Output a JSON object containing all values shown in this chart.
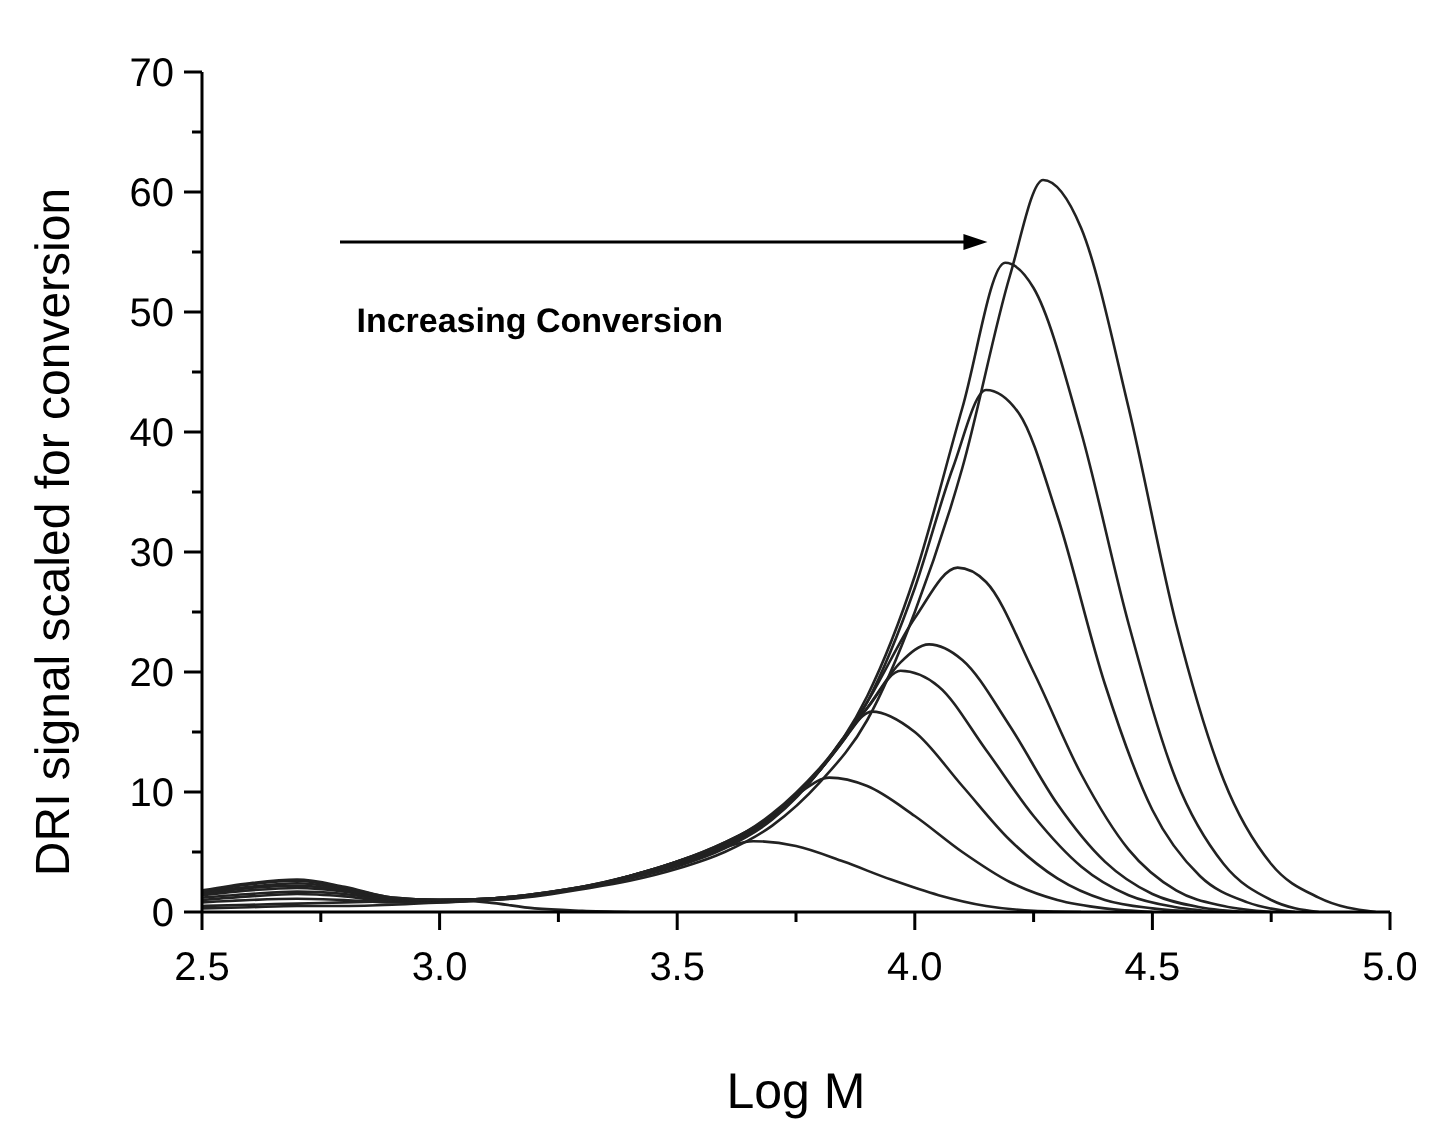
{
  "chart_data": {
    "type": "line",
    "xlabel": "Log M",
    "ylabel": "DRI signal scaled for conversion",
    "annotations": [
      "Increasing Conversion"
    ],
    "xlim": [
      2.5,
      5.0
    ],
    "ylim": [
      0,
      70
    ],
    "xticks": [
      2.5,
      {
        "value": 2.75,
        "label": null
      },
      {
        "value": 3.0,
        "label": "3.0"
      },
      {
        "value": 3.25,
        "label": null
      },
      3.5,
      {
        "value": 3.75,
        "label": null
      },
      {
        "value": 4.0,
        "label": "4.0"
      },
      {
        "value": 4.25,
        "label": null
      },
      4.5,
      {
        "value": 4.75,
        "label": null
      },
      {
        "value": 5.0,
        "label": "5.0"
      }
    ],
    "yticks": [
      0,
      {
        "value": 5,
        "label": null
      },
      10,
      {
        "value": 15,
        "label": null
      },
      20,
      {
        "value": 25,
        "label": null
      },
      30,
      {
        "value": 35,
        "label": null
      },
      40,
      {
        "value": 45,
        "label": null
      },
      50,
      {
        "value": 55,
        "label": null
      },
      60,
      {
        "value": 65,
        "label": null
      },
      70
    ],
    "marker": "none",
    "line_style": "solid",
    "series": [
      {
        "color": "#222222",
        "x": [
          2.5,
          2.6,
          2.7,
          2.8,
          2.9,
          3.0,
          3.1,
          3.2,
          3.3,
          3.4
        ],
        "values": [
          0.5,
          0.6,
          0.7,
          0.8,
          0.9,
          1.0,
          0.8,
          0.3,
          0.1,
          0
        ]
      },
      {
        "color": "#222222",
        "x": [
          2.5,
          2.6,
          2.7,
          2.8,
          2.9,
          3.0,
          3.1,
          3.2,
          3.3,
          3.4,
          3.5,
          3.6,
          3.66,
          3.75,
          3.85,
          3.95,
          4.05,
          4.15,
          4.25,
          4.35
        ],
        "values": [
          0.3,
          0.4,
          0.5,
          0.5,
          0.6,
          0.8,
          1.0,
          1.4,
          2.0,
          2.9,
          4.0,
          5.4,
          5.9,
          5.5,
          4.2,
          2.7,
          1.4,
          0.5,
          0.1,
          0
        ]
      },
      {
        "color": "#222222",
        "x": [
          2.5,
          2.6,
          2.7,
          2.8,
          2.9,
          3.0,
          3.1,
          3.2,
          3.3,
          3.4,
          3.5,
          3.6,
          3.7,
          3.76,
          3.82,
          3.9,
          4.0,
          4.1,
          4.2,
          4.3,
          4.4,
          4.5
        ],
        "values": [
          0.8,
          1.0,
          1.1,
          1.0,
          0.8,
          0.8,
          1.0,
          1.4,
          2.0,
          3.0,
          4.2,
          5.8,
          8.0,
          10.0,
          11.2,
          10.5,
          8.0,
          5.0,
          2.5,
          1.0,
          0.3,
          0
        ]
      },
      {
        "color": "#222222",
        "x": [
          2.5,
          2.6,
          2.7,
          2.8,
          2.9,
          3.0,
          3.1,
          3.2,
          3.3,
          3.4,
          3.5,
          3.6,
          3.7,
          3.8,
          3.86,
          3.91,
          4.0,
          4.1,
          4.2,
          4.3,
          4.4,
          4.5,
          4.6
        ],
        "values": [
          1.0,
          1.3,
          1.5,
          1.3,
          0.9,
          0.9,
          1.0,
          1.4,
          2.0,
          3.0,
          4.2,
          5.8,
          8.0,
          11.8,
          15.0,
          16.7,
          15.0,
          10.5,
          6.0,
          2.8,
          1.0,
          0.3,
          0
        ]
      },
      {
        "color": "#222222",
        "x": [
          2.5,
          2.6,
          2.7,
          2.8,
          2.9,
          3.0,
          3.1,
          3.2,
          3.3,
          3.4,
          3.5,
          3.6,
          3.7,
          3.8,
          3.9,
          3.97,
          4.05,
          4.15,
          4.25,
          4.35,
          4.45,
          4.55,
          4.65
        ],
        "values": [
          1.2,
          1.5,
          1.7,
          1.5,
          1.0,
          1.0,
          1.1,
          1.5,
          2.1,
          3.0,
          4.2,
          5.7,
          8.2,
          12.0,
          17.0,
          20.1,
          18.8,
          13.5,
          8.0,
          3.8,
          1.4,
          0.4,
          0
        ]
      },
      {
        "color": "#222222",
        "x": [
          2.5,
          2.6,
          2.7,
          2.8,
          2.9,
          3.0,
          3.1,
          3.2,
          3.3,
          3.4,
          3.5,
          3.6,
          3.7,
          3.8,
          3.9,
          3.97,
          4.03,
          4.1,
          4.2,
          4.3,
          4.4,
          4.5,
          4.6,
          4.7
        ],
        "values": [
          1.4,
          1.8,
          2.0,
          1.7,
          1.0,
          1.0,
          1.1,
          1.5,
          2.1,
          3.0,
          4.1,
          5.6,
          8.0,
          11.8,
          17.0,
          20.8,
          22.3,
          21.0,
          15.5,
          9.0,
          4.2,
          1.5,
          0.4,
          0
        ]
      },
      {
        "color": "#222222",
        "x": [
          2.5,
          2.6,
          2.7,
          2.8,
          2.9,
          3.0,
          3.1,
          3.2,
          3.3,
          3.4,
          3.5,
          3.6,
          3.7,
          3.8,
          3.9,
          4.0,
          4.09,
          4.15,
          4.25,
          4.35,
          4.45,
          4.55,
          4.65,
          4.75
        ],
        "values": [
          1.5,
          2.0,
          2.2,
          1.8,
          1.1,
          1.0,
          1.1,
          1.5,
          2.1,
          2.9,
          4.0,
          5.5,
          7.9,
          11.8,
          17.5,
          24.5,
          28.7,
          27.5,
          20.0,
          11.5,
          5.2,
          1.8,
          0.5,
          0
        ]
      },
      {
        "color": "#222222",
        "x": [
          2.5,
          2.6,
          2.7,
          2.8,
          2.9,
          3.0,
          3.1,
          3.2,
          3.3,
          3.4,
          3.5,
          3.6,
          3.7,
          3.8,
          3.9,
          4.0,
          4.08,
          4.15,
          4.22,
          4.3,
          4.4,
          4.5,
          4.6,
          4.7,
          4.8
        ],
        "values": [
          1.6,
          2.1,
          2.4,
          1.9,
          1.1,
          1.0,
          1.1,
          1.4,
          2.0,
          2.8,
          3.9,
          5.4,
          7.8,
          11.8,
          17.5,
          27.0,
          37.0,
          43.5,
          41.5,
          33.0,
          19.0,
          8.5,
          3.0,
          0.8,
          0
        ]
      },
      {
        "color": "#222222",
        "x": [
          2.5,
          2.6,
          2.7,
          2.8,
          2.9,
          3.0,
          3.1,
          3.2,
          3.3,
          3.4,
          3.5,
          3.6,
          3.7,
          3.8,
          3.9,
          4.0,
          4.1,
          4.19,
          4.25,
          4.35,
          4.45,
          4.55,
          4.65,
          4.75,
          4.85
        ],
        "values": [
          1.7,
          2.3,
          2.6,
          2.0,
          1.2,
          1.0,
          1.1,
          1.4,
          2.0,
          2.8,
          3.8,
          5.3,
          7.7,
          11.8,
          18.0,
          28.0,
          42.0,
          54.1,
          52.0,
          40.0,
          24.0,
          11.0,
          4.0,
          1.0,
          0
        ]
      },
      {
        "color": "#222222",
        "x": [
          2.5,
          2.6,
          2.7,
          2.8,
          2.9,
          3.0,
          3.1,
          3.2,
          3.3,
          3.4,
          3.5,
          3.6,
          3.7,
          3.8,
          3.9,
          4.0,
          4.1,
          4.2,
          4.27,
          4.35,
          4.45,
          4.55,
          4.65,
          4.75,
          4.85,
          4.97
        ],
        "values": [
          1.8,
          2.4,
          2.7,
          2.1,
          1.2,
          1.0,
          1.0,
          1.3,
          1.9,
          2.6,
          3.6,
          5.0,
          7.2,
          10.8,
          16.0,
          25.0,
          37.0,
          53.0,
          61.0,
          57.0,
          42.0,
          24.0,
          11.0,
          4.0,
          1.2,
          0
        ]
      }
    ]
  }
}
